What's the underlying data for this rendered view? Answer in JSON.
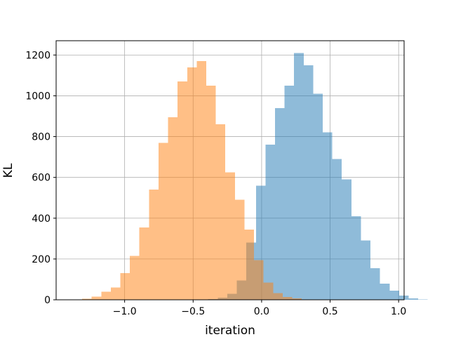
{
  "chart_data": {
    "type": "bar",
    "title": "",
    "xlabel": "iteration",
    "ylabel": "KL",
    "xlim": [
      -1.5,
      1.04
    ],
    "ylim": [
      0,
      1270
    ],
    "grid": true,
    "xticks": [
      -1.0,
      -0.5,
      0.0,
      0.5,
      1.0
    ],
    "xtick_labels": [
      "−1.0",
      "−0.5",
      "0.0",
      "0.5",
      "1.0"
    ],
    "yticks": [
      0,
      200,
      400,
      600,
      800,
      1000,
      1200
    ],
    "ytick_labels": [
      "0",
      "200",
      "400",
      "600",
      "800",
      "1000",
      "1200"
    ],
    "series": [
      {
        "color": "#1f77b4",
        "opacity": 0.5,
        "bin_start": -0.46,
        "bin_width": 0.0697,
        "counts": [
          1,
          3,
          10,
          30,
          95,
          280,
          560,
          760,
          940,
          1050,
          1210,
          1150,
          1010,
          820,
          690,
          590,
          410,
          290,
          155,
          80,
          45,
          20,
          7,
          2
        ]
      },
      {
        "color": "#ff7f0e",
        "opacity": 0.5,
        "bin_start": -1.38,
        "bin_width": 0.0697,
        "counts": [
          2,
          5,
          15,
          40,
          60,
          130,
          215,
          355,
          540,
          770,
          895,
          1070,
          1140,
          1170,
          1050,
          860,
          625,
          490,
          345,
          195,
          85,
          32,
          14,
          7,
          2,
          1
        ]
      }
    ]
  }
}
